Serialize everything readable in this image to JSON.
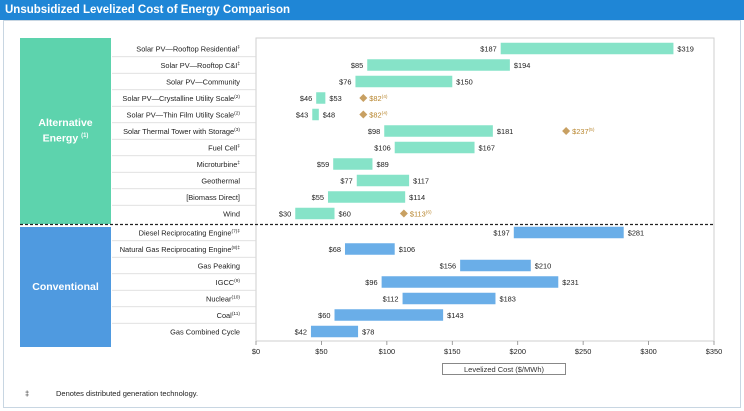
{
  "header": {
    "title": "Unsubsidized  Levelized Cost of Energy Comparison"
  },
  "groups": {
    "alternative": {
      "label_line1": "Alternative",
      "label_line2": "Energy",
      "note": "(1)"
    },
    "conventional": {
      "label": "Conventional"
    }
  },
  "footnote": {
    "symbol": "‡",
    "text": "Denotes distributed generation technology."
  },
  "colors": {
    "title_bar": "#1f86d6",
    "alt_bar": "#86e3c8",
    "alt_group": "#5dd3ad",
    "conv_bar": "#6aaee8",
    "conv_group": "#4f9ae0",
    "marker": "#c8a062"
  },
  "chart_data": {
    "type": "bar",
    "orientation": "horizontal-floating",
    "xlabel": "Levelized Cost ($/MWh)",
    "xlim": [
      0,
      350
    ],
    "xticks": [
      "$0",
      "$50",
      "$100",
      "$150",
      "$200",
      "$250",
      "$300",
      "$350"
    ],
    "grid": false,
    "rows": [
      {
        "label": "Solar PV—Rooftop Residential",
        "suffix": "‡",
        "group": "alternative",
        "low": 187,
        "high": 319,
        "low_label": "$187",
        "high_label": "$319"
      },
      {
        "label": "Solar PV—Rooftop C&I",
        "suffix": "‡",
        "group": "alternative",
        "low": 85,
        "high": 194,
        "low_label": "$85",
        "high_label": "$194"
      },
      {
        "label": "Solar PV—Community",
        "suffix": "",
        "group": "alternative",
        "low": 76,
        "high": 150,
        "low_label": "$76",
        "high_label": "$150"
      },
      {
        "label": "Solar PV—Crystalline Utility Scale",
        "suffix": "(2)",
        "group": "alternative",
        "low": 46,
        "high": 53,
        "low_label": "$46",
        "high_label": "$53",
        "marker": 82,
        "marker_label": "$82",
        "marker_note": "(4)"
      },
      {
        "label": "Solar PV—Thin Film Utility Scale",
        "suffix": "(2)",
        "group": "alternative",
        "low": 43,
        "high": 48,
        "low_label": "$43",
        "high_label": "$48",
        "marker": 82,
        "marker_label": "$82",
        "marker_note": "(4)"
      },
      {
        "label": "Solar Thermal Tower with Storage",
        "suffix": "(3)",
        "group": "alternative",
        "low": 98,
        "high": 181,
        "low_label": "$98",
        "high_label": "$181",
        "marker": 237,
        "marker_label": "$237",
        "marker_note": "(5)"
      },
      {
        "label": "Fuel Cell",
        "suffix": "‡",
        "group": "alternative",
        "low": 106,
        "high": 167,
        "low_label": "$106",
        "high_label": "$167"
      },
      {
        "label": "Microturbine",
        "suffix": "‡",
        "group": "alternative",
        "low": 59,
        "high": 89,
        "low_label": "$59",
        "high_label": "$89"
      },
      {
        "label": "Geothermal",
        "suffix": "",
        "group": "alternative",
        "low": 77,
        "high": 117,
        "low_label": "$77",
        "high_label": "$117"
      },
      {
        "label": "[Biomass Direct]",
        "suffix": "",
        "group": "alternative",
        "low": 55,
        "high": 114,
        "low_label": "$55",
        "high_label": "$114"
      },
      {
        "label": "Wind",
        "suffix": "",
        "group": "alternative",
        "low": 30,
        "high": 60,
        "low_label": "$30",
        "high_label": "$60",
        "marker": 113,
        "marker_label": "$113",
        "marker_note": "(6)"
      },
      {
        "label": "Diesel Reciprocating Engine",
        "suffix": "(7)‡",
        "group": "conventional",
        "low": 197,
        "high": 281,
        "low_label": "$197",
        "high_label": "$281"
      },
      {
        "label": "Natural Gas Reciprocating Engine",
        "suffix": "(8)‡",
        "group": "conventional",
        "low": 68,
        "high": 106,
        "low_label": "$68",
        "high_label": "$106"
      },
      {
        "label": "Gas Peaking",
        "suffix": "",
        "group": "conventional",
        "low": 156,
        "high": 210,
        "low_label": "$156",
        "high_label": "$210"
      },
      {
        "label": "IGCC",
        "suffix": "(9)",
        "group": "conventional",
        "low": 96,
        "high": 231,
        "low_label": "$96",
        "high_label": "$231"
      },
      {
        "label": "Nuclear",
        "suffix": "(10)",
        "group": "conventional",
        "low": 112,
        "high": 183,
        "low_label": "$112",
        "high_label": "$183"
      },
      {
        "label": "Coal",
        "suffix": "(11)",
        "group": "conventional",
        "low": 60,
        "high": 143,
        "low_label": "$60",
        "high_label": "$143"
      },
      {
        "label": "Gas Combined Cycle",
        "suffix": "",
        "group": "conventional",
        "low": 42,
        "high": 78,
        "low_label": "$42",
        "high_label": "$78"
      }
    ]
  }
}
